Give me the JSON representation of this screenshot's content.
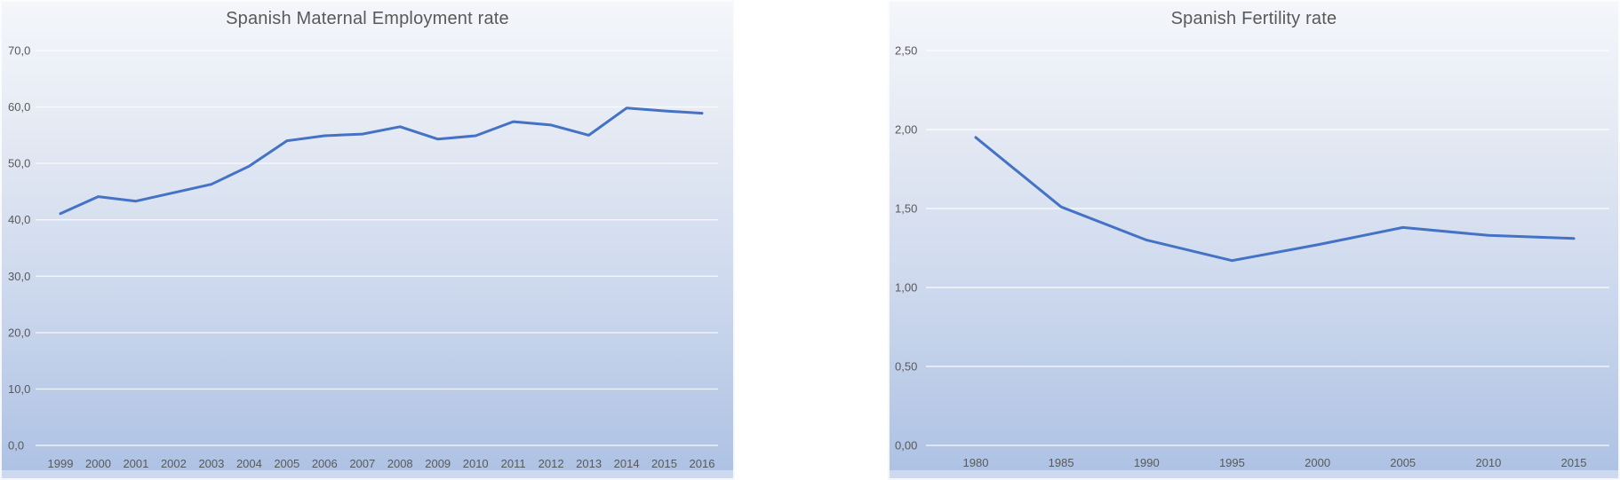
{
  "colors": {
    "series_line": "#4472C4",
    "axis_text": "#595959",
    "gridline": "#ffffff",
    "plot_gradient_top": "#f4f6fa",
    "plot_gradient_bottom": "#aec2e4",
    "chart_area_strip": "#cdd9ef",
    "page_background": "#ffffff"
  },
  "chart_data": [
    {
      "type": "line",
      "title": "Spanish Maternal Employment rate",
      "categories": [
        "1999",
        "2000",
        "2001",
        "2002",
        "2003",
        "2004",
        "2005",
        "2006",
        "2007",
        "2008",
        "2009",
        "2010",
        "2011",
        "2012",
        "2013",
        "2014",
        "2015",
        "2016"
      ],
      "values": [
        41.1,
        44.1,
        43.3,
        44.8,
        46.3,
        49.5,
        54.0,
        54.9,
        55.2,
        56.5,
        54.3,
        54.9,
        57.4,
        56.8,
        55.0,
        59.8,
        59.3,
        58.9
      ],
      "xlabel": "",
      "ylabel": "",
      "ylim": [
        0,
        70
      ],
      "y_step": 10,
      "y_tick_labels": [
        "0,0",
        "10,0",
        "20,0",
        "30,0",
        "40,0",
        "50,0",
        "60,0",
        "70,0"
      ],
      "grid": true,
      "legend": "none",
      "line_color": "#4472C4"
    },
    {
      "type": "line",
      "title": "Spanish Fertility rate",
      "categories": [
        "1980",
        "1985",
        "1990",
        "1995",
        "2000",
        "2005",
        "2010",
        "2015"
      ],
      "values": [
        1.95,
        1.51,
        1.3,
        1.17,
        1.27,
        1.38,
        1.33,
        1.31
      ],
      "xlabel": "",
      "ylabel": "",
      "ylim": [
        0,
        2.5
      ],
      "y_step": 0.5,
      "y_tick_labels": [
        "0,00",
        "0,50",
        "1,00",
        "1,50",
        "2,00",
        "2,50"
      ],
      "grid": true,
      "legend": "none",
      "line_color": "#4472C4"
    }
  ]
}
